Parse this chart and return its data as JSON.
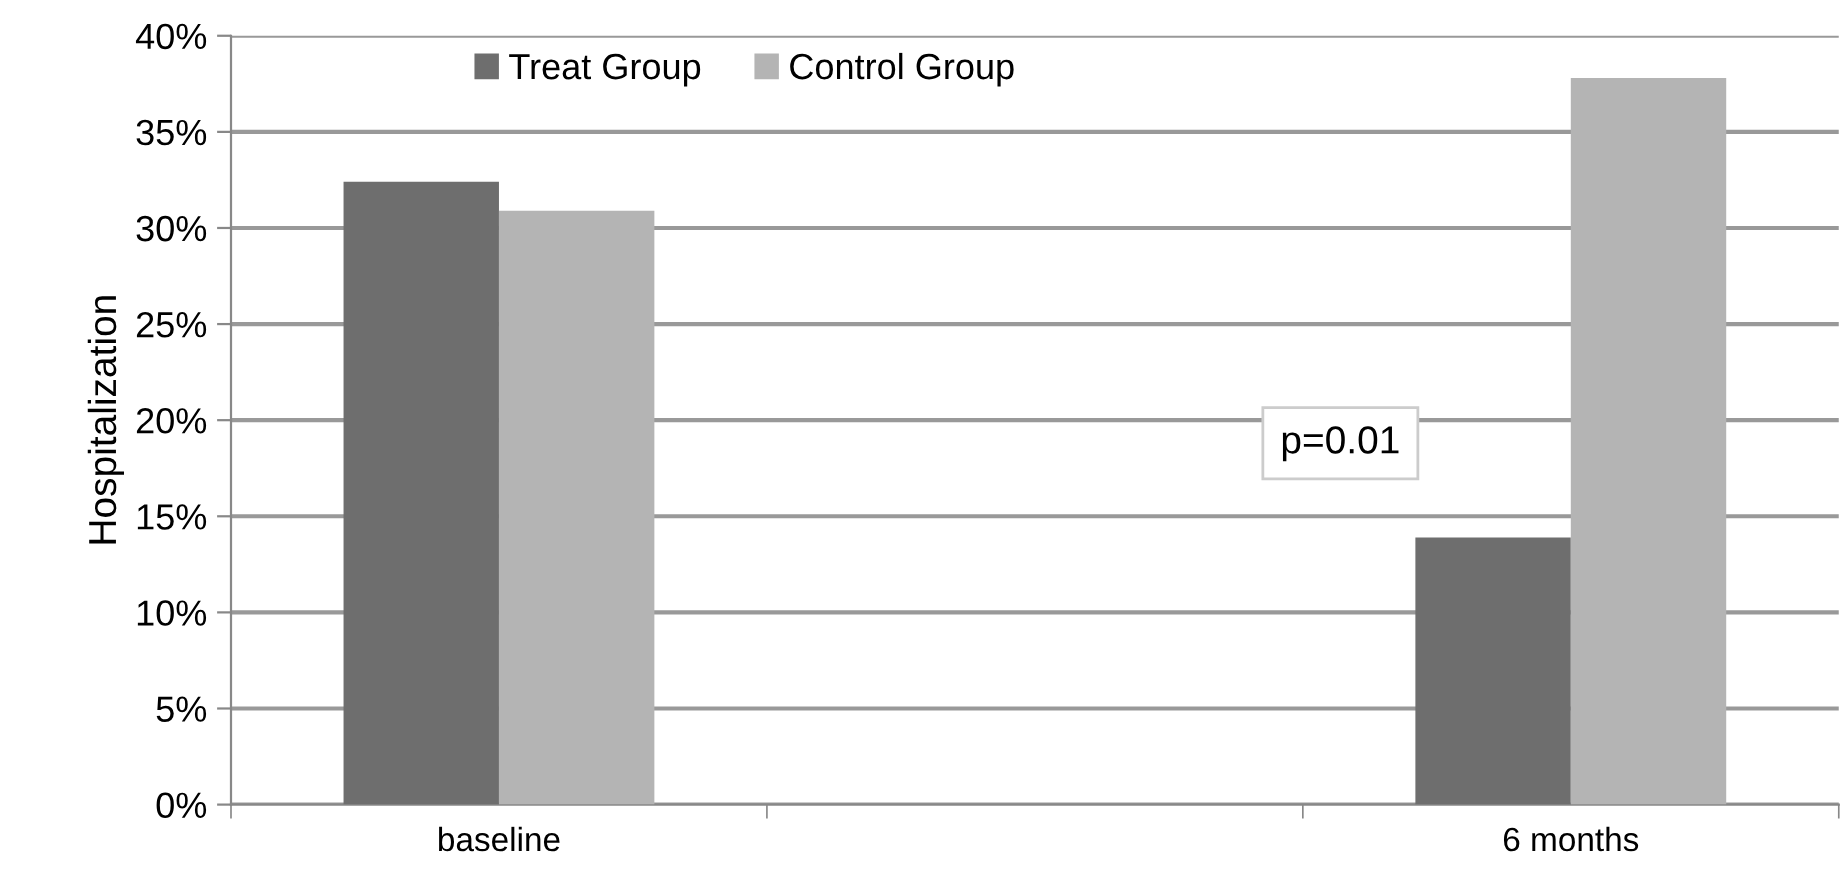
{
  "chart_data": {
    "type": "bar",
    "ylabel": "Hospitalization",
    "categories": [
      "baseline",
      null,
      "6 months"
    ],
    "series": [
      {
        "name": "Treat Group",
        "color": "#6e6e6e",
        "values": [
          32.4,
          null,
          13.9
        ]
      },
      {
        "name": "Control Group",
        "color": "#b4b4b4",
        "values": [
          30.9,
          null,
          37.8
        ]
      }
    ],
    "ylim": [
      0,
      40
    ],
    "yticks": [
      {
        "value": 0,
        "label": "0%"
      },
      {
        "value": 5,
        "label": "5%"
      },
      {
        "value": 10,
        "label": "10%"
      },
      {
        "value": 15,
        "label": "15%"
      },
      {
        "value": 20,
        "label": "20%"
      },
      {
        "value": 25,
        "label": "25%"
      },
      {
        "value": 30,
        "label": "30%"
      },
      {
        "value": 35,
        "label": "35%"
      },
      {
        "value": 40,
        "label": "40%"
      }
    ],
    "grid": "y",
    "legend": "top",
    "annotations": [
      "p=0.01"
    ]
  }
}
